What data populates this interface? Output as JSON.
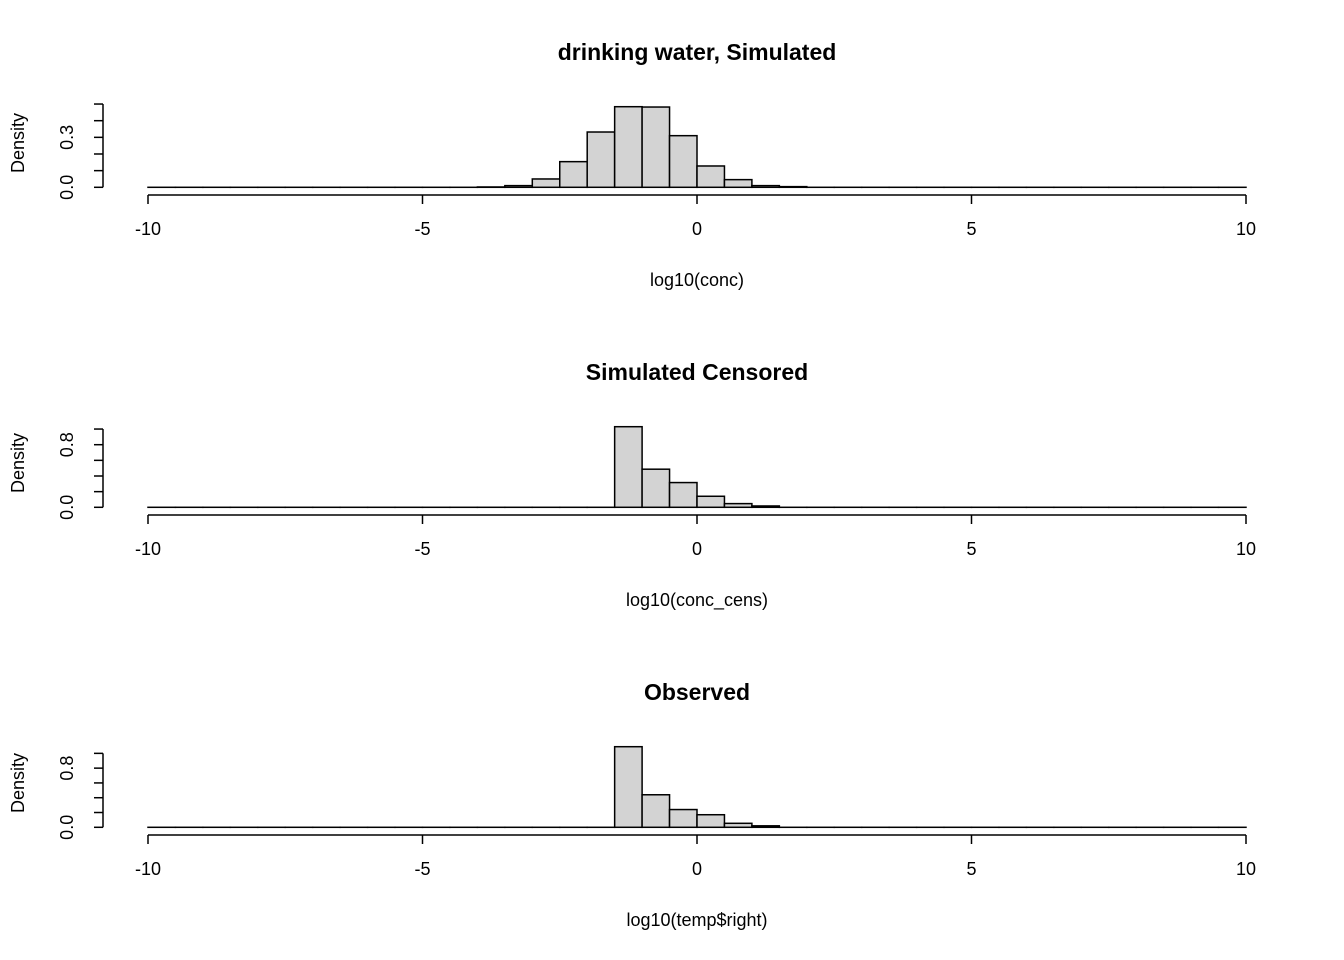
{
  "chart_data": [
    {
      "type": "bar",
      "title": "drinking water, Simulated",
      "xlabel": "log10(conc)",
      "ylabel": "Density",
      "xlim": [
        -10,
        10
      ],
      "xticks": [
        -10,
        -5,
        0,
        5,
        10
      ],
      "yticks": [
        0,
        0.1,
        0.2,
        0.3,
        0.4,
        0.5
      ],
      "ytick_labels": [
        {
          "value": 0,
          "label": "0.0"
        },
        {
          "value": 0.3,
          "label": "0.3"
        }
      ],
      "bin_start": -10,
      "bin_width": 0.5,
      "densities": [
        0,
        0,
        0,
        0,
        0,
        0,
        0,
        0,
        0,
        0,
        0,
        0,
        0.002,
        0.01,
        0.05,
        0.154,
        0.332,
        0.484,
        0.482,
        0.31,
        0.128,
        0.046,
        0.01,
        0.004,
        0,
        0,
        0,
        0,
        0,
        0,
        0,
        0,
        0,
        0,
        0,
        0,
        0,
        0,
        0,
        0
      ]
    },
    {
      "type": "bar",
      "title": "Simulated Censored",
      "xlabel": "log10(conc_cens)",
      "ylabel": "Density",
      "xlim": [
        -10,
        10
      ],
      "xticks": [
        -10,
        -5,
        0,
        5,
        10
      ],
      "yticks": [
        0,
        0.2,
        0.4,
        0.6,
        0.8,
        1.0
      ],
      "ytick_labels": [
        {
          "value": 0,
          "label": "0.0"
        },
        {
          "value": 0.8,
          "label": "0.8"
        }
      ],
      "bin_start": -10,
      "bin_width": 0.5,
      "densities": [
        0,
        0,
        0,
        0,
        0,
        0,
        0,
        0,
        0,
        0,
        0,
        0,
        0,
        0,
        0,
        0,
        0,
        1.03,
        0.487,
        0.316,
        0.141,
        0.047,
        0.017,
        0,
        0,
        0,
        0,
        0,
        0,
        0,
        0,
        0,
        0,
        0,
        0,
        0,
        0,
        0,
        0,
        0
      ]
    },
    {
      "type": "bar",
      "title": "Observed",
      "xlabel": "log10(temp$right)",
      "ylabel": "Density",
      "xlim": [
        -10,
        10
      ],
      "xticks": [
        -10,
        -5,
        0,
        5,
        10
      ],
      "yticks": [
        0,
        0.2,
        0.4,
        0.6,
        0.8,
        1.0
      ],
      "ytick_labels": [
        {
          "value": 0,
          "label": "0.0"
        },
        {
          "value": 0.8,
          "label": "0.8"
        }
      ],
      "bin_start": -10,
      "bin_width": 0.5,
      "densities": [
        0,
        0,
        0,
        0,
        0,
        0,
        0,
        0,
        0,
        0,
        0,
        0,
        0,
        0,
        0,
        0,
        0,
        1.09,
        0.44,
        0.24,
        0.17,
        0.054,
        0.02,
        0,
        0,
        0,
        0,
        0,
        0,
        0,
        0,
        0,
        0,
        0,
        0,
        0,
        0,
        0,
        0,
        0
      ]
    }
  ],
  "colors": {
    "bar_fill": "#d3d3d3",
    "stroke": "#000000"
  }
}
